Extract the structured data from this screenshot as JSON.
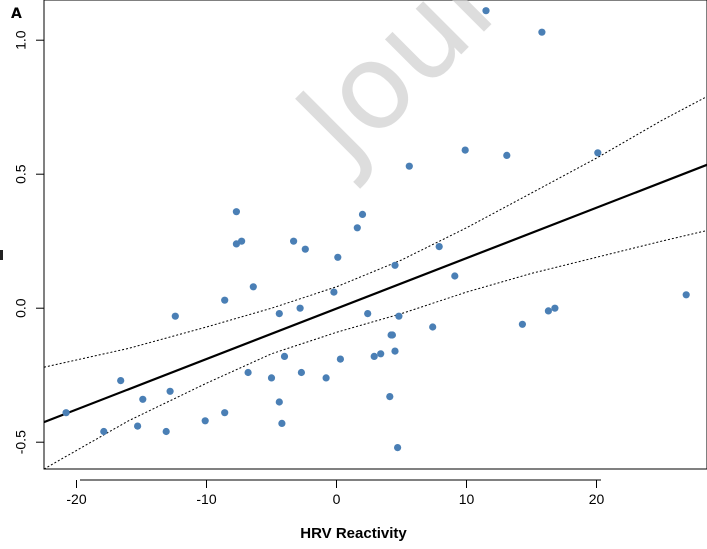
{
  "panel_label": "A",
  "watermark": "Journal",
  "chart_data": {
    "type": "scatter",
    "title": "",
    "xlabel": "HRV Reactivity",
    "ylabel": "",
    "xlim": [
      -22.5,
      28.5
    ],
    "ylim": [
      -0.6,
      1.15
    ],
    "xticks": [
      -20,
      -10,
      0,
      10,
      20
    ],
    "xtick_labels": [
      "-20",
      "-10",
      "0",
      "10",
      "20"
    ],
    "yticks": [
      -0.5,
      0.0,
      0.5,
      1.0
    ],
    "ytick_labels": [
      "-0.5",
      "0.0",
      "0.5",
      "1.0"
    ],
    "point_color": "#4a7fb5",
    "regression": {
      "x": [
        -22.5,
        28.5
      ],
      "y": [
        -0.425,
        0.535
      ]
    },
    "ci_upper": {
      "x": [
        -22.5,
        -16,
        -10,
        -5,
        0,
        5,
        10,
        15,
        20,
        25,
        28.5
      ],
      "y": [
        -0.22,
        -0.15,
        -0.07,
        0.0,
        0.08,
        0.18,
        0.3,
        0.43,
        0.56,
        0.7,
        0.79
      ]
    },
    "ci_lower": {
      "x": [
        -22.5,
        -16,
        -10,
        -5,
        0,
        5,
        10,
        15,
        20,
        25,
        28.5
      ],
      "y": [
        -0.6,
        -0.42,
        -0.28,
        -0.17,
        -0.09,
        -0.02,
        0.06,
        0.13,
        0.19,
        0.25,
        0.29
      ]
    },
    "x": [
      -20.8,
      -17.9,
      -16.6,
      -15.3,
      -14.9,
      -13.1,
      -12.8,
      -12.4,
      -10.1,
      -8.6,
      -8.6,
      -7.7,
      -7.7,
      -7.3,
      -6.8,
      -6.4,
      -5.0,
      -4.4,
      -4.4,
      -4.2,
      -4.0,
      -3.3,
      -2.8,
      -2.7,
      -2.4,
      -0.8,
      -0.2,
      0.1,
      0.3,
      1.6,
      2.0,
      2.4,
      2.9,
      3.4,
      4.1,
      4.2,
      4.3,
      4.5,
      4.5,
      4.7,
      4.8,
      5.6,
      7.4,
      7.9,
      9.1,
      9.9,
      11.5,
      13.1,
      14.3,
      15.8,
      16.3,
      16.8,
      20.1,
      26.9
    ],
    "y": [
      -0.39,
      -0.46,
      -0.27,
      -0.44,
      -0.34,
      -0.46,
      -0.31,
      -0.03,
      -0.42,
      -0.39,
      0.03,
      0.36,
      0.24,
      0.25,
      -0.24,
      0.08,
      -0.26,
      -0.02,
      -0.35,
      -0.43,
      -0.18,
      0.25,
      0.0,
      -0.24,
      0.22,
      -0.26,
      0.06,
      0.19,
      -0.19,
      0.3,
      0.35,
      -0.02,
      -0.18,
      -0.17,
      -0.33,
      -0.1,
      -0.1,
      -0.16,
      0.16,
      -0.52,
      -0.03,
      0.53,
      -0.07,
      0.23,
      0.12,
      0.59,
      1.11,
      0.57,
      -0.06,
      1.03,
      -0.01,
      0.0,
      0.58,
      0.05
    ]
  }
}
